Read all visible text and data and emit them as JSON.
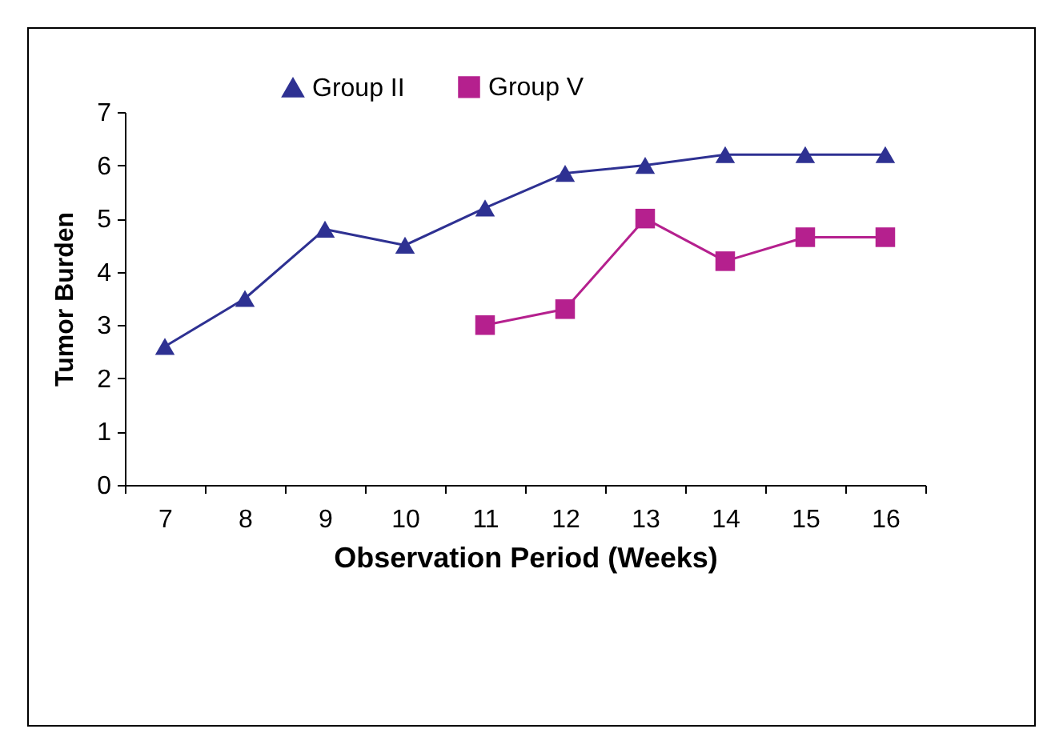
{
  "chart_data": {
    "type": "line",
    "xlabel": "Observation Period (Weeks)",
    "ylabel": "Tumor Burden",
    "categories": [
      "7",
      "8",
      "9",
      "10",
      "11",
      "12",
      "13",
      "14",
      "15",
      "16"
    ],
    "series": [
      {
        "name": "Group II",
        "color": "#2e3192",
        "marker": "triangle",
        "values": [
          2.6,
          3.5,
          4.8,
          4.5,
          5.2,
          5.85,
          6.0,
          6.2,
          6.2,
          6.2
        ]
      },
      {
        "name": "Group V",
        "color": "#b5208e",
        "marker": "square",
        "values": [
          null,
          null,
          null,
          null,
          3.0,
          3.3,
          5.0,
          4.2,
          4.65,
          4.65
        ]
      }
    ],
    "ylim": [
      0,
      7
    ],
    "yticks": [
      0,
      1,
      2,
      3,
      4,
      5,
      6,
      7
    ],
    "grid": false,
    "legend": "top",
    "line_style": "solid"
  }
}
